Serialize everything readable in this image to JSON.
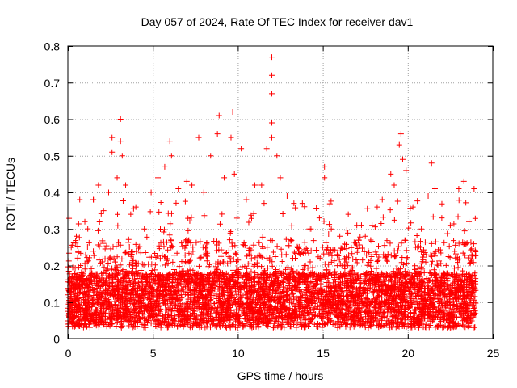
{
  "chart_data": {
    "type": "scatter",
    "title": "Day 057 of 2024, Rate Of TEC Index for receiver dav1",
    "xlabel": "GPS time / hours",
    "ylabel": "ROTI / TECUs",
    "xlim": [
      0,
      25
    ],
    "ylim": [
      0,
      0.8
    ],
    "xticks": [
      "0",
      "5",
      "10",
      "15",
      "20",
      "25"
    ],
    "yticks": [
      "0",
      "0.1",
      "0.2",
      "0.3",
      "0.4",
      "0.5",
      "0.6",
      "0.7",
      "0.8"
    ],
    "grid": true,
    "marker": "plus",
    "color": "#ff0000",
    "series": [
      {
        "values_note_excluded": false,
        "points": [
          [
            0.0,
            0.12
          ],
          [
            0.2,
            0.25
          ],
          [
            0.5,
            0.28
          ],
          [
            0.7,
            0.38
          ],
          [
            1.0,
            0.32
          ],
          [
            1.5,
            0.38
          ],
          [
            1.8,
            0.42
          ],
          [
            2.1,
            0.35
          ],
          [
            2.4,
            0.4
          ],
          [
            2.6,
            0.55
          ],
          [
            2.6,
            0.51
          ],
          [
            2.9,
            0.44
          ],
          [
            3.1,
            0.6
          ],
          [
            3.1,
            0.54
          ],
          [
            3.2,
            0.5
          ],
          [
            3.4,
            0.42
          ],
          [
            3.7,
            0.34
          ],
          [
            4.0,
            0.36
          ],
          [
            4.5,
            0.3
          ],
          [
            4.9,
            0.4
          ],
          [
            5.3,
            0.44
          ],
          [
            5.7,
            0.47
          ],
          [
            6.0,
            0.54
          ],
          [
            6.1,
            0.5
          ],
          [
            6.5,
            0.41
          ],
          [
            7.0,
            0.43
          ],
          [
            7.3,
            0.42
          ],
          [
            7.7,
            0.55
          ],
          [
            8.0,
            0.4
          ],
          [
            8.4,
            0.5
          ],
          [
            8.8,
            0.56
          ],
          [
            8.9,
            0.61
          ],
          [
            9.2,
            0.44
          ],
          [
            9.6,
            0.55
          ],
          [
            9.7,
            0.62
          ],
          [
            9.8,
            0.45
          ],
          [
            10.2,
            0.52
          ],
          [
            10.5,
            0.38
          ],
          [
            11.0,
            0.42
          ],
          [
            11.4,
            0.42
          ],
          [
            11.7,
            0.52
          ],
          [
            12.0,
            0.77
          ],
          [
            12.0,
            0.72
          ],
          [
            12.0,
            0.67
          ],
          [
            12.0,
            0.59
          ],
          [
            12.0,
            0.55
          ],
          [
            12.3,
            0.5
          ],
          [
            12.5,
            0.44
          ],
          [
            12.9,
            0.39
          ],
          [
            13.3,
            0.37
          ],
          [
            13.8,
            0.37
          ],
          [
            14.3,
            0.3
          ],
          [
            14.8,
            0.33
          ],
          [
            15.1,
            0.47
          ],
          [
            15.1,
            0.44
          ],
          [
            15.5,
            0.3
          ],
          [
            16.0,
            0.28
          ],
          [
            16.5,
            0.34
          ],
          [
            17.0,
            0.31
          ],
          [
            17.5,
            0.28
          ],
          [
            17.9,
            0.31
          ],
          [
            18.2,
            0.36
          ],
          [
            18.5,
            0.38
          ],
          [
            19.0,
            0.45
          ],
          [
            19.2,
            0.42
          ],
          [
            19.5,
            0.53
          ],
          [
            19.6,
            0.56
          ],
          [
            19.7,
            0.49
          ],
          [
            19.9,
            0.46
          ],
          [
            20.3,
            0.36
          ],
          [
            20.8,
            0.3
          ],
          [
            21.2,
            0.39
          ],
          [
            21.4,
            0.48
          ],
          [
            21.6,
            0.41
          ],
          [
            22.0,
            0.33
          ],
          [
            22.5,
            0.31
          ],
          [
            23.0,
            0.41
          ],
          [
            23.3,
            0.43
          ],
          [
            23.6,
            0.32
          ],
          [
            23.9,
            0.41
          ]
        ]
      }
    ]
  }
}
